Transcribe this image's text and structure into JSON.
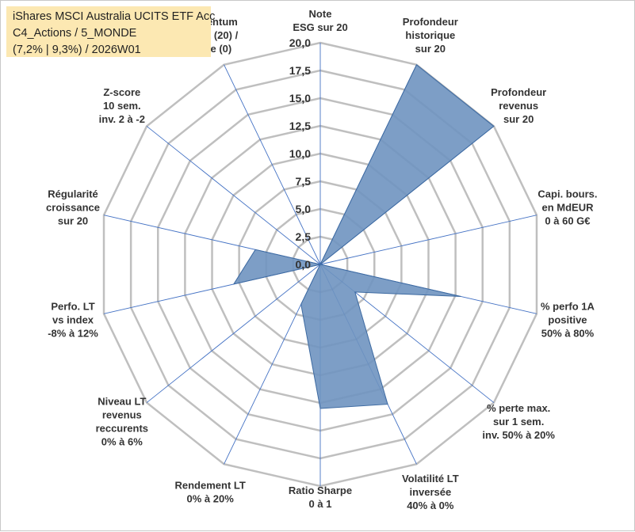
{
  "header": {
    "title_lines": [
      "iShares MSCI Australia UCITS ETF Acc",
      "C4_Actions / 5_MONDE",
      "(7,2% | 9,3%) / 2026W01"
    ]
  },
  "chart_data": {
    "type": "radar",
    "title": "iShares MSCI Australia UCITS ETF Acc",
    "rmax": 20,
    "ticks": [
      0,
      2.5,
      5,
      7.5,
      10,
      12.5,
      15,
      17.5,
      20
    ],
    "tick_labels": [
      "0,0",
      "2,5",
      "5,0",
      "7,5",
      "10,0",
      "12,5",
      "15,0",
      "17,5",
      "20,0"
    ],
    "axes": [
      [
        "Note",
        "ESG sur 20"
      ],
      [
        "Profondeur",
        "historique",
        "sur 20"
      ],
      [
        "Profondeur",
        "revenus",
        "sur 20"
      ],
      [
        "Capi. bours.",
        "en MdEUR",
        "0 à 60 G€"
      ],
      [
        "% perfo 1A",
        "positive",
        "50% à 80%"
      ],
      [
        "% perte max.",
        "sur 1 sem.",
        "inv. 50% à 20%"
      ],
      [
        "Volatilité LT",
        "inversée",
        "40% à 0%"
      ],
      [
        "Ratio Sharpe",
        "0 à 1"
      ],
      [
        "Rendement LT",
        "0% à 20%"
      ],
      [
        "Niveau LT",
        "revenus",
        "reccurents",
        "0% à 6%"
      ],
      [
        "Perfo. LT",
        "vs index",
        "-8% à 12%"
      ],
      [
        "Régularité",
        "croissance",
        "sur 20"
      ],
      [
        "Z-score",
        "10 sem.",
        "inv. 2 à -2"
      ],
      [
        "Momentum",
        "Achat (20) /",
        "Vente (0)"
      ]
    ],
    "series": [
      {
        "values": [
          0,
          20,
          20,
          0,
          13,
          4,
          14,
          13,
          4,
          0,
          8,
          6,
          0,
          0
        ],
        "color": "#4f81bd"
      }
    ],
    "grid": true,
    "colors": {
      "fill": "#6f94c0",
      "stroke": "#3d6aa1",
      "grid": "#bfbfbf",
      "spoke": "#4472c4"
    }
  }
}
